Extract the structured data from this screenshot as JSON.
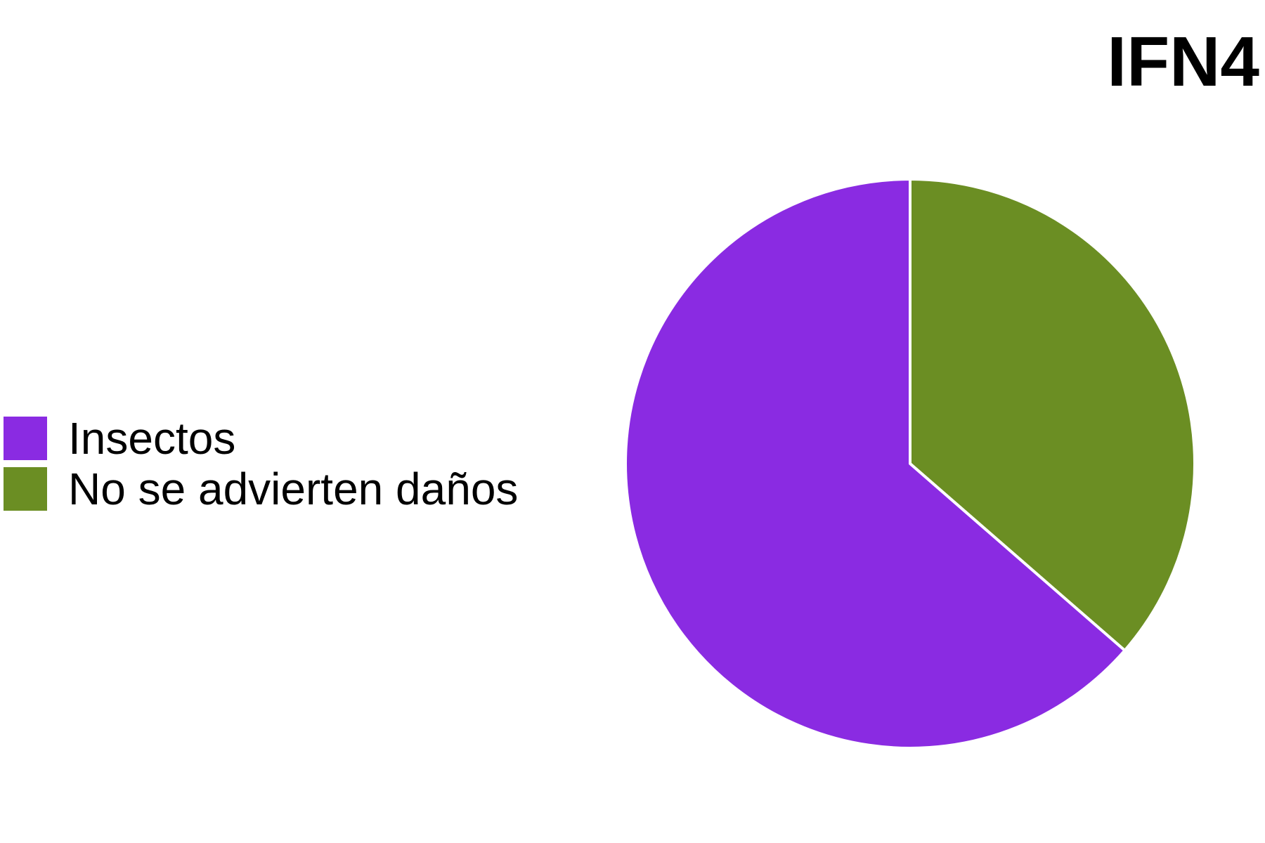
{
  "chart_data": {
    "type": "pie",
    "title": "IFN4",
    "legend_position": "left",
    "slices": [
      {
        "label": "No se advierten daños",
        "value": 36.4,
        "color": "#6b8e23"
      },
      {
        "label": "Insectos",
        "value": 63.6,
        "color": "#8a2be2"
      }
    ],
    "legend": [
      {
        "label": "Insectos",
        "color": "#8a2be2"
      },
      {
        "label": "No se advierten daños",
        "color": "#6b8e23"
      }
    ],
    "slice_border_color": "#ffffff"
  }
}
